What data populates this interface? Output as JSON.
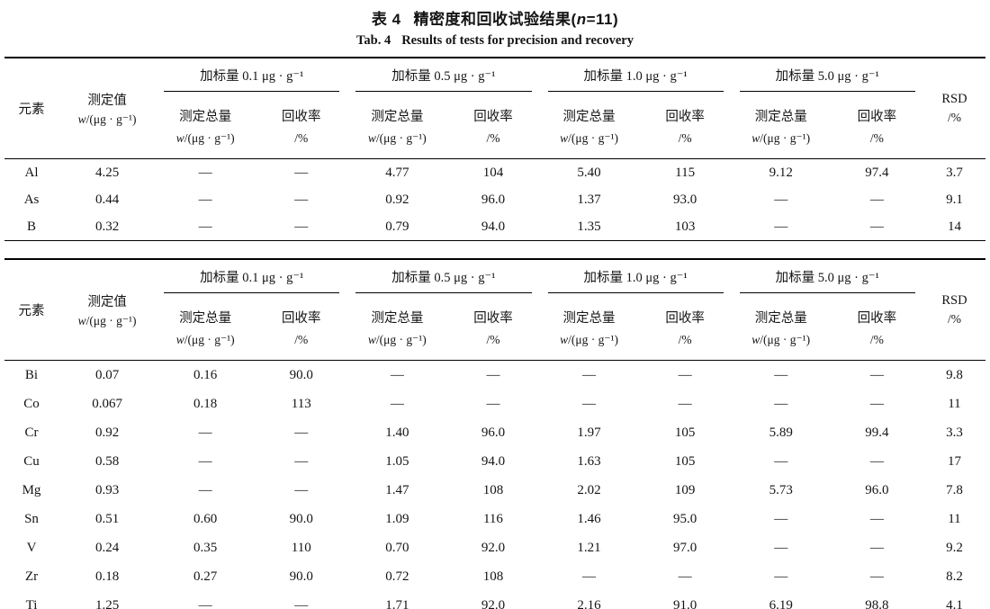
{
  "page": {
    "background": "#ffffff",
    "text_color": "#141414"
  },
  "title": {
    "zh_label": "表 4",
    "zh_pre": "精密度和回收试验结果(",
    "zh_var": "n",
    "zh_post": "=11)",
    "en_label": "Tab. 4",
    "en_text": "Results of tests for precision and recovery"
  },
  "header": {
    "element": "元素",
    "measured": "测定值",
    "unit_var": "w",
    "unit_rest": "/(μg · g⁻¹)",
    "groups": [
      "加标量 0.1 μg · g⁻¹",
      "加标量 0.5 μg · g⁻¹",
      "加标量 1.0 μg · g⁻¹",
      "加标量 5.0 μg · g⁻¹"
    ],
    "total_label": "测定总量",
    "recovery_label": "回收率",
    "percent_label": "/%",
    "rsd_label": "RSD"
  },
  "columns": [
    "元素",
    "测定值 w/(μg·g⁻¹)",
    "加标量0.1 测定总量 w/(μg·g⁻¹)",
    "加标量0.1 回收率/%",
    "加标量0.5 测定总量 w/(μg·g⁻¹)",
    "加标量0.5 回收率/%",
    "加标量1.0 测定总量 w/(μg·g⁻¹)",
    "加标量1.0 回收率/%",
    "加标量5.0 测定总量 w/(μg·g⁻¹)",
    "加标量5.0 回收率/%",
    "RSD/%"
  ],
  "table1": {
    "rows": [
      [
        "Al",
        "4.25",
        "—",
        "—",
        "4.77",
        "104",
        "5.40",
        "115",
        "9.12",
        "97.4",
        "3.7"
      ],
      [
        "As",
        "0.44",
        "—",
        "—",
        "0.92",
        "96.0",
        "1.37",
        "93.0",
        "—",
        "—",
        "9.1"
      ],
      [
        "B",
        "0.32",
        "—",
        "—",
        "0.79",
        "94.0",
        "1.35",
        "103",
        "—",
        "—",
        "14"
      ]
    ]
  },
  "table2": {
    "rows": [
      [
        "Bi",
        "0.07",
        "0.16",
        "90.0",
        "—",
        "—",
        "—",
        "—",
        "—",
        "—",
        "9.8"
      ],
      [
        "Co",
        "0.067",
        "0.18",
        "113",
        "—",
        "—",
        "—",
        "—",
        "—",
        "—",
        "11"
      ],
      [
        "Cr",
        "0.92",
        "—",
        "—",
        "1.40",
        "96.0",
        "1.97",
        "105",
        "5.89",
        "99.4",
        "3.3"
      ],
      [
        "Cu",
        "0.58",
        "—",
        "—",
        "1.05",
        "94.0",
        "1.63",
        "105",
        "—",
        "—",
        "17"
      ],
      [
        "Mg",
        "0.93",
        "—",
        "—",
        "1.47",
        "108",
        "2.02",
        "109",
        "5.73",
        "96.0",
        "7.8"
      ],
      [
        "Sn",
        "0.51",
        "0.60",
        "90.0",
        "1.09",
        "116",
        "1.46",
        "95.0",
        "—",
        "—",
        "11"
      ],
      [
        "V",
        "0.24",
        "0.35",
        "110",
        "0.70",
        "92.0",
        "1.21",
        "97.0",
        "—",
        "—",
        "9.2"
      ],
      [
        "Zr",
        "0.18",
        "0.27",
        "90.0",
        "0.72",
        "108",
        "—",
        "—",
        "—",
        "—",
        "8.2"
      ],
      [
        "Ti",
        "1.25",
        "—",
        "—",
        "1.71",
        "92.0",
        "2.16",
        "91.0",
        "6.19",
        "98.8",
        "4.1"
      ]
    ]
  }
}
